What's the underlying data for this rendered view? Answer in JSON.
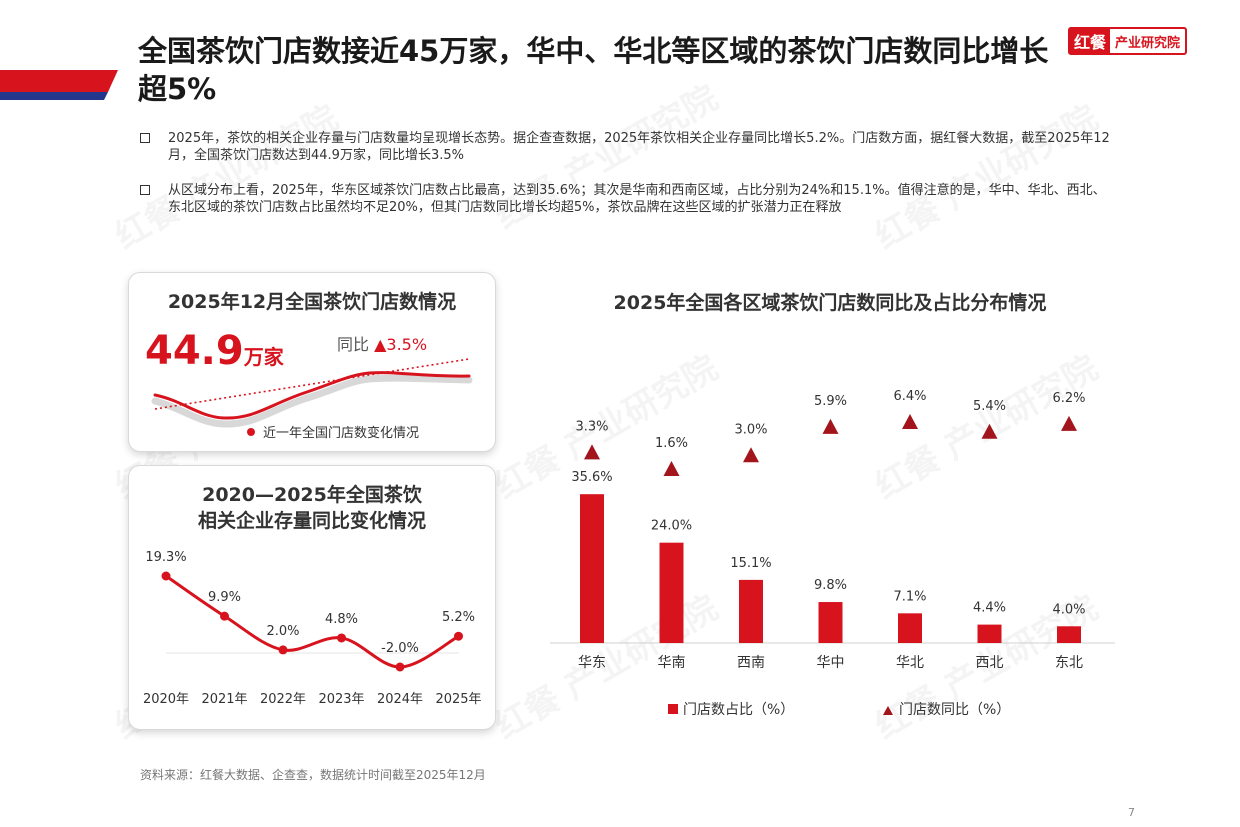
{
  "header": {
    "title": "全国茶饮门店数接近45万家，华中、华北等区域的茶饮门店数同比增长超5%",
    "logo_mark": "红餐",
    "logo_text": "产业研究院"
  },
  "bullets": [
    "2025年，茶饮的相关企业存量与门店数量均呈现增长态势。据企查查数据，2025年茶饮相关企业存量同比增长5.2%。门店数方面，据红餐大数据，截至2025年12月，全国茶饮门店数达到44.9万家，同比增长3.5%",
    "从区域分布上看，2025年，华东区域茶饮门店数占比最高，达到35.6%；其次是华南和西南区域，占比分别为24%和15.1%。值得注意的是，华中、华北、西北、东北区域的茶饮门店数占比虽然均不足20%，但其门店数同比增长均超5%，茶饮品牌在这些区域的扩张潜力正在释放"
  ],
  "card_stores": {
    "title": "2025年12月全国茶饮门店数情况",
    "value": "44.9",
    "unit": "万家",
    "yoy_label": "同比",
    "yoy_value": "▲3.5%",
    "legend": "近一年全国门店数变化情况"
  },
  "card_enterprises": {
    "title_line1": "2020—2025年全国茶饮",
    "title_line2": "相关企业存量同比变化情况"
  },
  "chart_data": [
    {
      "type": "line",
      "x": [
        "2020年",
        "2021年",
        "2022年",
        "2023年",
        "2024年",
        "2025年"
      ],
      "values": [
        19.3,
        9.9,
        2.0,
        4.8,
        -2.0,
        5.2
      ],
      "labels": [
        "19.3%",
        "9.9%",
        "2.0%",
        "4.8%",
        "-2.0%",
        "5.2%"
      ],
      "grid": false
    },
    {
      "type": "bar",
      "title": "2025年全国各区域茶饮门店数同比及占比分布情况",
      "categories": [
        "华东",
        "华南",
        "西南",
        "华中",
        "华北",
        "西北",
        "东北"
      ],
      "series": [
        {
          "name": "门店数占比（%）",
          "type": "bar",
          "values": [
            35.6,
            24.0,
            15.1,
            9.8,
            7.1,
            4.4,
            4.0
          ],
          "labels": [
            "35.6%",
            "24.0%",
            "15.1%",
            "9.8%",
            "7.1%",
            "4.4%",
            "4.0%"
          ]
        },
        {
          "name": "门店数同比（%）",
          "type": "scatter",
          "marker": "triangle",
          "values": [
            3.3,
            1.6,
            3.0,
            5.9,
            6.4,
            5.4,
            6.2
          ],
          "labels": [
            "3.3%",
            "1.6%",
            "3.0%",
            "5.9%",
            "6.4%",
            "5.4%",
            "6.2%"
          ]
        }
      ],
      "legend": "bottom",
      "grid": false
    }
  ],
  "footer": {
    "source": "资料来源：红餐大数据、企查查，数据统计时间截至2025年12月",
    "page": "7"
  },
  "colors": {
    "accent": "#d7141e",
    "navy": "#23378c",
    "bar": "#d7141e",
    "triangle": "#a3151c"
  }
}
